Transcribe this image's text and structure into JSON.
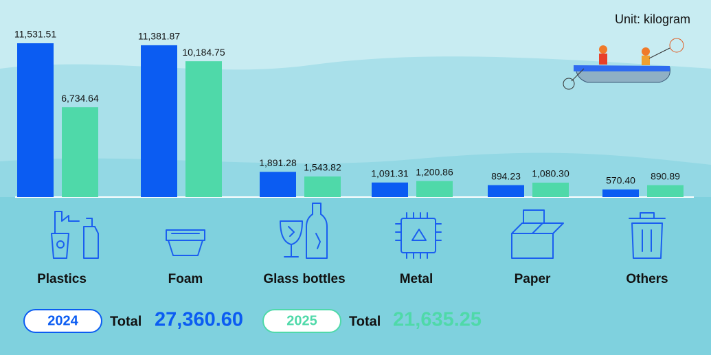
{
  "chart_data": {
    "type": "bar",
    "unit": "Unit: kilogram",
    "categories": [
      "Plastics",
      "Foam",
      "Glass bottles",
      "Metal",
      "Paper",
      "Others"
    ],
    "series": [
      {
        "name": "2024",
        "color": "#0b5cf2",
        "values": [
          11531.51,
          11381.87,
          1891.28,
          1091.31,
          894.23,
          570.4
        ],
        "value_labels": [
          "11,531.51",
          "11,381.87",
          "1,891.28",
          "1,091.31",
          "894.23",
          "570.40"
        ],
        "total_text": "Total",
        "total": 27360.6,
        "total_label": "27,360.60"
      },
      {
        "name": "2025",
        "color": "#4fd9a9",
        "values": [
          6734.64,
          10184.75,
          1543.82,
          1200.86,
          1080.3,
          890.89
        ],
        "value_labels": [
          "6,734.64",
          "10,184.75",
          "1,543.82",
          "1,200.86",
          "1,080.30",
          "890.89"
        ],
        "total_text": "Total",
        "total": 21635.25,
        "total_label": "21,635.25"
      }
    ]
  }
}
